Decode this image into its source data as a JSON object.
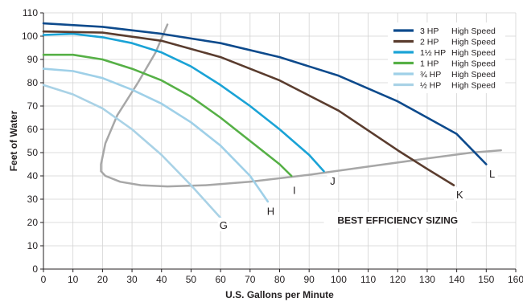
{
  "chart_data": {
    "type": "line",
    "title": "",
    "xlabel": "U.S. Gallons per Minute",
    "ylabel": "Feet of Water",
    "xlim": [
      0,
      160
    ],
    "ylim": [
      0,
      110
    ],
    "x_ticks": [
      0,
      10,
      20,
      30,
      40,
      50,
      60,
      70,
      80,
      90,
      100,
      110,
      120,
      130,
      140,
      150,
      160
    ],
    "y_ticks": [
      0,
      10,
      20,
      30,
      40,
      50,
      60,
      70,
      80,
      90,
      100,
      110
    ],
    "grid": true,
    "legend_position": "top-right",
    "series": [
      {
        "name": "3 HP",
        "speed": "High Speed",
        "color": "#0d4a8c",
        "x": [
          0,
          20,
          40,
          60,
          80,
          100,
          120,
          140,
          150
        ],
        "y": [
          105.5,
          104,
          101,
          97,
          91,
          83,
          72,
          58,
          45
        ]
      },
      {
        "name": "2 HP",
        "speed": "High Speed",
        "color": "#5a3c2e",
        "x": [
          0,
          20,
          40,
          60,
          80,
          100,
          120,
          130,
          139
        ],
        "y": [
          102,
          101.5,
          98,
          91,
          81,
          68,
          51,
          43,
          36
        ]
      },
      {
        "name": "1½ HP",
        "speed": "High Speed",
        "color": "#1aa3d6",
        "x": [
          0,
          10,
          20,
          30,
          40,
          50,
          60,
          70,
          80,
          90,
          95
        ],
        "y": [
          100.5,
          101,
          99.5,
          97,
          93,
          87,
          79,
          70,
          60,
          49,
          42
        ]
      },
      {
        "name": "1 HP",
        "speed": "High Speed",
        "color": "#56b046",
        "x": [
          0,
          10,
          20,
          30,
          40,
          50,
          60,
          70,
          80,
          84
        ],
        "y": [
          92,
          92,
          90,
          86,
          81,
          74,
          65,
          55,
          45,
          40
        ]
      },
      {
        "name": "¾ HP",
        "speed": "High Speed",
        "color": "#9fd0e8",
        "x": [
          0,
          10,
          20,
          30,
          40,
          50,
          60,
          70,
          76
        ],
        "y": [
          86,
          85,
          82,
          77,
          71,
          63,
          53,
          40,
          29
        ]
      },
      {
        "name": "½ HP",
        "speed": "High Speed",
        "color": "#a9d2e6",
        "x": [
          0,
          10,
          20,
          30,
          40,
          50,
          60
        ],
        "y": [
          79,
          75,
          69,
          60,
          49,
          36,
          22
        ]
      }
    ],
    "efficiency_curve": {
      "label": "BEST EFFICIENCY SIZING",
      "color": "#a7a7a7",
      "x": [
        42,
        38,
        32,
        25,
        21,
        19.5,
        19.5,
        21,
        26,
        33,
        42,
        55,
        70,
        90,
        110,
        130,
        145,
        155
      ],
      "y": [
        105,
        93,
        80,
        66,
        54,
        45,
        42,
        40,
        37.5,
        36,
        35.5,
        36,
        37.5,
        40.5,
        44,
        47.5,
        50,
        51
      ]
    },
    "point_labels": [
      {
        "label": "G",
        "x": 61,
        "y": 19
      },
      {
        "label": "H",
        "x": 77,
        "y": 25
      },
      {
        "label": "I",
        "x": 85,
        "y": 34
      },
      {
        "label": "J",
        "x": 98,
        "y": 38
      },
      {
        "label": "K",
        "x": 141,
        "y": 32
      },
      {
        "label": "L",
        "x": 152,
        "y": 41
      }
    ]
  }
}
